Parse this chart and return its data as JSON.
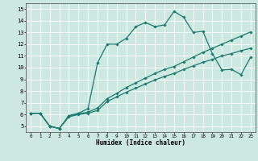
{
  "xlabel": "Humidex (Indice chaleur)",
  "bg_color": "#cce8e0",
  "line_color": "#1a7a6e",
  "grid_color": "#ffffff",
  "xlim": [
    -0.5,
    23.5
  ],
  "ylim": [
    4.5,
    15.5
  ],
  "xticks": [
    0,
    1,
    2,
    3,
    4,
    5,
    6,
    7,
    8,
    9,
    10,
    11,
    12,
    13,
    14,
    15,
    16,
    17,
    18,
    19,
    20,
    21,
    22,
    23
  ],
  "yticks": [
    5,
    6,
    7,
    8,
    9,
    10,
    11,
    12,
    13,
    14,
    15
  ],
  "series_main_x": [
    0,
    1,
    2,
    3,
    4,
    5,
    6,
    7,
    8,
    9,
    10,
    11,
    12,
    13,
    14,
    15,
    16,
    17,
    18,
    19,
    20,
    21,
    22,
    23
  ],
  "series_main_y": [
    6.1,
    6.1,
    5.0,
    4.8,
    5.9,
    6.1,
    6.5,
    10.4,
    12.0,
    12.0,
    12.5,
    13.5,
    13.85,
    13.5,
    13.65,
    14.8,
    14.3,
    13.0,
    13.1,
    11.2,
    9.8,
    9.85,
    9.4,
    10.9
  ],
  "series_line2_x": [
    0,
    1,
    2,
    3,
    4,
    5,
    6,
    7,
    8,
    9,
    10,
    11,
    12,
    13,
    14,
    15,
    16,
    17,
    18,
    19,
    20,
    21,
    22,
    23
  ],
  "series_line2_y": [
    6.1,
    6.1,
    5.0,
    4.8,
    5.85,
    6.05,
    6.2,
    6.55,
    7.35,
    7.8,
    8.3,
    8.7,
    9.1,
    9.5,
    9.85,
    10.1,
    10.5,
    10.9,
    11.3,
    11.65,
    12.0,
    12.35,
    12.7,
    13.05
  ],
  "series_line3_x": [
    0,
    1,
    2,
    3,
    4,
    5,
    6,
    7,
    8,
    9,
    10,
    11,
    12,
    13,
    14,
    15,
    16,
    17,
    18,
    19,
    20,
    21,
    22,
    23
  ],
  "series_line3_y": [
    6.1,
    6.1,
    5.0,
    4.8,
    5.8,
    6.0,
    6.1,
    6.35,
    7.1,
    7.5,
    7.9,
    8.25,
    8.6,
    8.95,
    9.25,
    9.5,
    9.85,
    10.15,
    10.45,
    10.7,
    11.0,
    11.2,
    11.45,
    11.65
  ],
  "marker": "D",
  "markersize": 1.8,
  "linewidth": 0.9
}
